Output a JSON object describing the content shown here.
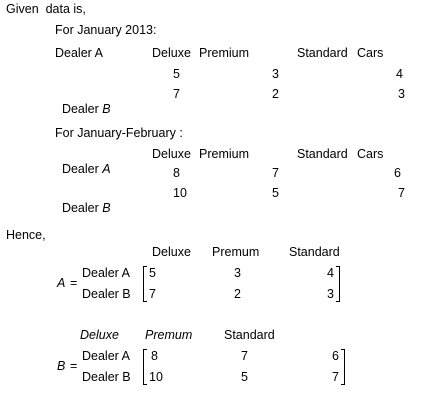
{
  "intro": "Given  data is,",
  "section1": {
    "heading": "For January 2013:",
    "dealer_label": "Dealer A",
    "col_deluxe": "Deluxe",
    "col_premium": "Premium",
    "col_standard": "Standard",
    "col_cars": "Cars",
    "rowA": [
      "5",
      "3",
      "4"
    ],
    "dealerB_prefix": "Dealer ",
    "dealerB_letter": "B",
    "rowB": [
      "7",
      "2",
      "3"
    ]
  },
  "section2": {
    "heading": "For January-February :",
    "dealerA_prefix": "Dealer ",
    "dealerA_letter": "A",
    "col_deluxe": "Deluxe",
    "col_premium": "Premium",
    "col_standard": "Standard",
    "col_cars": "Cars",
    "rowA": [
      "8",
      "7",
      "6"
    ],
    "dealerB_prefix": "Dealer ",
    "dealerB_letter": "B",
    "rowB": [
      "10",
      "5",
      "7"
    ]
  },
  "hence": "Hence,",
  "matrixA": {
    "name": "A",
    "eq": "=",
    "headers": [
      "Deluxe",
      "Premum",
      "Standard"
    ],
    "row_labels": [
      "Dealer A",
      "Dealer B"
    ],
    "rows": [
      [
        "5",
        "3",
        "4"
      ],
      [
        "7",
        "2",
        "3"
      ]
    ]
  },
  "matrixB": {
    "name": "B",
    "eq": "=",
    "headers": [
      "Deluxe",
      "Premum",
      "Standard"
    ],
    "row_labels": [
      "Dealer A",
      "Dealer B"
    ],
    "rows": [
      [
        "8",
        "7",
        "6"
      ],
      [
        "10",
        "5",
        "7"
      ]
    ]
  }
}
